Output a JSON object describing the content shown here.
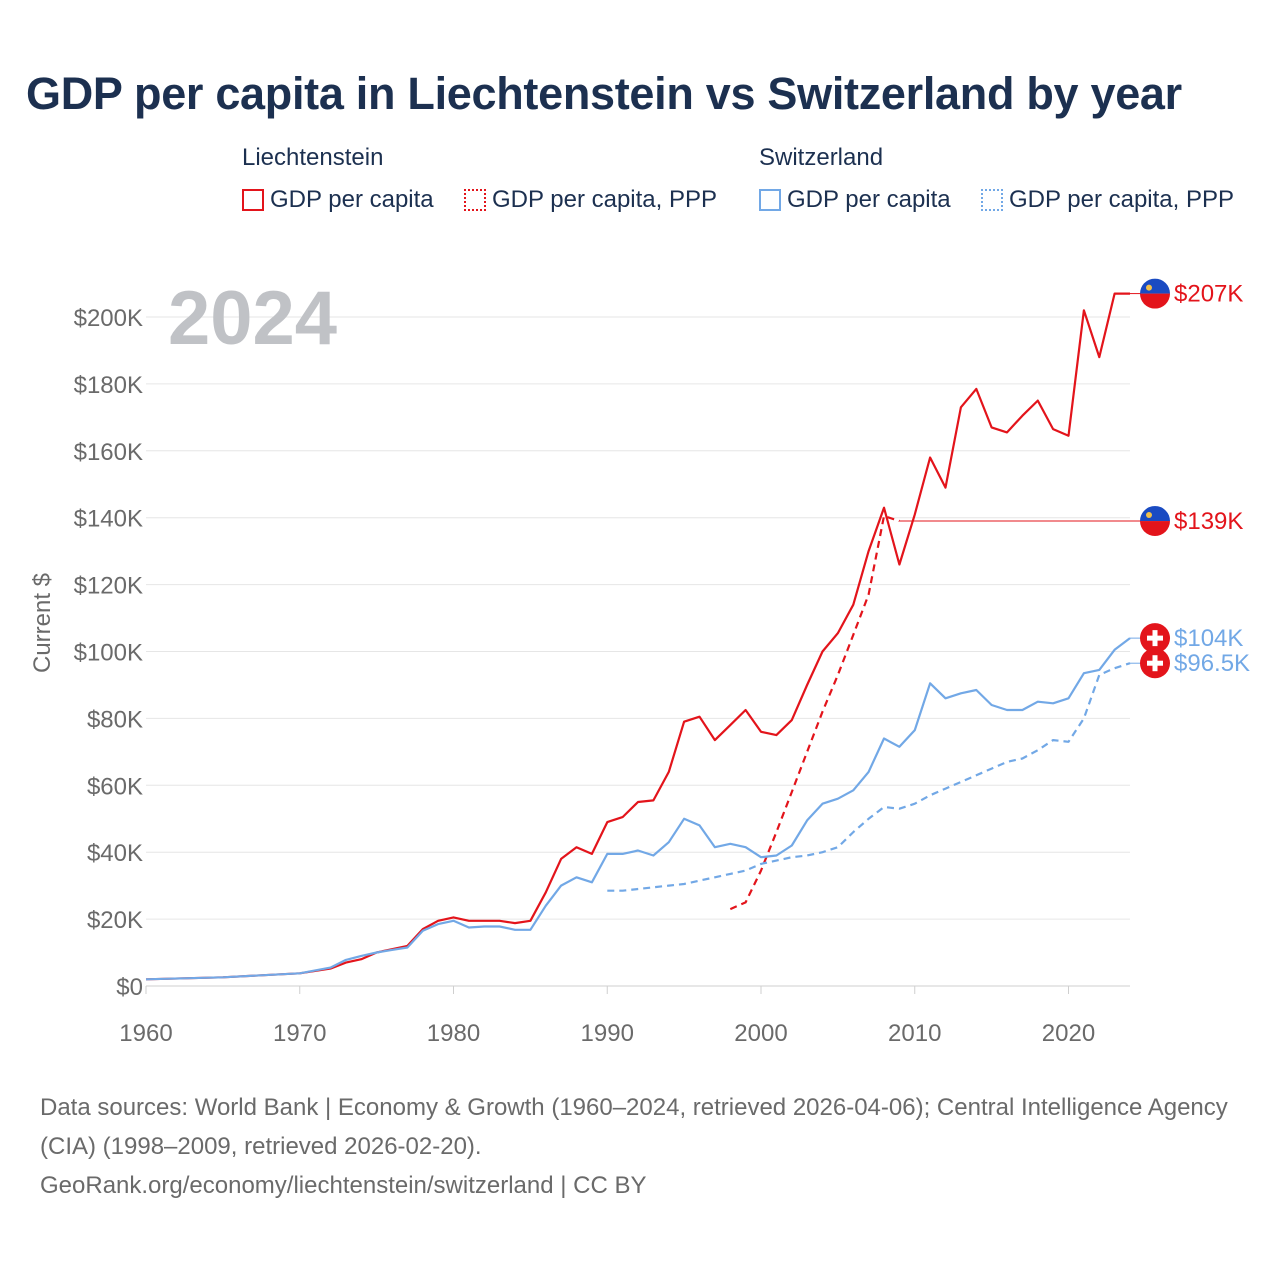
{
  "title": "GDP per capita in Liechtenstein vs Switzerland by year",
  "year_watermark": "2024",
  "legend": {
    "groups": [
      {
        "name": "Liechtenstein",
        "color": "#e3141b",
        "items": [
          "GDP per capita",
          "GDP per capita, PPP"
        ]
      },
      {
        "name": "Switzerland",
        "color": "#72a8e6",
        "items": [
          "GDP per capita",
          "GDP per capita, PPP"
        ]
      }
    ]
  },
  "chart_data": {
    "type": "line",
    "title": "GDP per capita in Liechtenstein vs Switzerland by year",
    "xlabel": "",
    "ylabel": "Current $",
    "xlim": [
      1960,
      2024
    ],
    "ylim": [
      0,
      207000
    ],
    "x_ticks": [
      1960,
      1970,
      1980,
      1990,
      2000,
      2010,
      2020
    ],
    "y_ticks": [
      0,
      20000,
      40000,
      60000,
      80000,
      100000,
      120000,
      140000,
      160000,
      180000,
      200000
    ],
    "y_tick_labels": [
      "$0",
      "$20K",
      "$40K",
      "$60K",
      "$80K",
      "$100K",
      "$120K",
      "$140K",
      "$160K",
      "$180K",
      "$200K"
    ],
    "series": [
      {
        "name": "Liechtenstein GDP per capita",
        "color": "#e3141b",
        "dashed": false,
        "end_label": "$207K",
        "points": [
          [
            1960,
            2000
          ],
          [
            1965,
            2600
          ],
          [
            1970,
            3800
          ],
          [
            1972,
            5200
          ],
          [
            1973,
            7000
          ],
          [
            1974,
            8000
          ],
          [
            1975,
            10000
          ],
          [
            1976,
            11000
          ],
          [
            1977,
            12000
          ],
          [
            1978,
            17000
          ],
          [
            1979,
            19500
          ],
          [
            1980,
            20500
          ],
          [
            1981,
            19500
          ],
          [
            1982,
            19500
          ],
          [
            1983,
            19500
          ],
          [
            1984,
            18800
          ],
          [
            1985,
            19500
          ],
          [
            1986,
            28000
          ],
          [
            1987,
            38000
          ],
          [
            1988,
            41500
          ],
          [
            1989,
            39500
          ],
          [
            1990,
            49000
          ],
          [
            1991,
            50500
          ],
          [
            1992,
            55000
          ],
          [
            1993,
            55500
          ],
          [
            1994,
            64000
          ],
          [
            1995,
            79000
          ],
          [
            1996,
            80500
          ],
          [
            1997,
            73500
          ],
          [
            1998,
            78000
          ],
          [
            1999,
            82500
          ],
          [
            2000,
            76000
          ],
          [
            2001,
            75000
          ],
          [
            2002,
            79500
          ],
          [
            2003,
            90000
          ],
          [
            2004,
            100000
          ],
          [
            2005,
            105500
          ],
          [
            2006,
            114000
          ],
          [
            2007,
            130000
          ],
          [
            2008,
            143000
          ],
          [
            2009,
            126000
          ],
          [
            2010,
            141000
          ],
          [
            2011,
            158000
          ],
          [
            2012,
            149000
          ],
          [
            2013,
            173000
          ],
          [
            2014,
            178500
          ],
          [
            2015,
            167000
          ],
          [
            2016,
            165500
          ],
          [
            2017,
            170500
          ],
          [
            2018,
            175000
          ],
          [
            2019,
            166500
          ],
          [
            2020,
            164500
          ],
          [
            2021,
            202000
          ],
          [
            2022,
            188000
          ],
          [
            2023,
            207000
          ],
          [
            2024,
            207000
          ]
        ]
      },
      {
        "name": "Liechtenstein GDP per capita, PPP",
        "color": "#e3141b",
        "dashed": true,
        "end_label": "$139K",
        "points": [
          [
            1998,
            23000
          ],
          [
            1999,
            25000
          ],
          [
            2000,
            34500
          ],
          [
            2001,
            46000
          ],
          [
            2002,
            58000
          ],
          [
            2003,
            70000
          ],
          [
            2004,
            82000
          ],
          [
            2005,
            93000
          ],
          [
            2006,
            105000
          ],
          [
            2007,
            117000
          ],
          [
            2008,
            140500
          ],
          [
            2009,
            139000
          ]
        ]
      },
      {
        "name": "Switzerland GDP per capita",
        "color": "#72a8e6",
        "dashed": false,
        "end_label": "$104K",
        "points": [
          [
            1960,
            2000
          ],
          [
            1965,
            2600
          ],
          [
            1970,
            3800
          ],
          [
            1972,
            5500
          ],
          [
            1973,
            7800
          ],
          [
            1974,
            9000
          ],
          [
            1975,
            10000
          ],
          [
            1976,
            10800
          ],
          [
            1977,
            11500
          ],
          [
            1978,
            16500
          ],
          [
            1979,
            18500
          ],
          [
            1980,
            19500
          ],
          [
            1981,
            17500
          ],
          [
            1982,
            17800
          ],
          [
            1983,
            17800
          ],
          [
            1984,
            16800
          ],
          [
            1985,
            16800
          ],
          [
            1986,
            24000
          ],
          [
            1987,
            30000
          ],
          [
            1988,
            32500
          ],
          [
            1989,
            31000
          ],
          [
            1990,
            39500
          ],
          [
            1991,
            39500
          ],
          [
            1992,
            40500
          ],
          [
            1993,
            39000
          ],
          [
            1994,
            43000
          ],
          [
            1995,
            50000
          ],
          [
            1996,
            48000
          ],
          [
            1997,
            41500
          ],
          [
            1998,
            42500
          ],
          [
            1999,
            41500
          ],
          [
            2000,
            38500
          ],
          [
            2001,
            39000
          ],
          [
            2002,
            42000
          ],
          [
            2003,
            49500
          ],
          [
            2004,
            54500
          ],
          [
            2005,
            56000
          ],
          [
            2006,
            58500
          ],
          [
            2007,
            64000
          ],
          [
            2008,
            74000
          ],
          [
            2009,
            71500
          ],
          [
            2010,
            76500
          ],
          [
            2011,
            90500
          ],
          [
            2012,
            86000
          ],
          [
            2013,
            87500
          ],
          [
            2014,
            88500
          ],
          [
            2015,
            84000
          ],
          [
            2016,
            82500
          ],
          [
            2017,
            82500
          ],
          [
            2018,
            85000
          ],
          [
            2019,
            84500
          ],
          [
            2020,
            86000
          ],
          [
            2021,
            93500
          ],
          [
            2022,
            94500
          ],
          [
            2023,
            100500
          ],
          [
            2024,
            104000
          ]
        ]
      },
      {
        "name": "Switzerland GDP per capita, PPP",
        "color": "#72a8e6",
        "dashed": true,
        "end_label": "$96.5K",
        "points": [
          [
            1990,
            28500
          ],
          [
            1991,
            28500
          ],
          [
            1992,
            29000
          ],
          [
            1993,
            29500
          ],
          [
            1994,
            30000
          ],
          [
            1995,
            30500
          ],
          [
            1996,
            31500
          ],
          [
            1997,
            32500
          ],
          [
            1998,
            33500
          ],
          [
            1999,
            34500
          ],
          [
            2000,
            36500
          ],
          [
            2001,
            37500
          ],
          [
            2002,
            38500
          ],
          [
            2003,
            39000
          ],
          [
            2004,
            40000
          ],
          [
            2005,
            41500
          ],
          [
            2006,
            46000
          ],
          [
            2007,
            50000
          ],
          [
            2008,
            53500
          ],
          [
            2009,
            53000
          ],
          [
            2010,
            54500
          ],
          [
            2011,
            57000
          ],
          [
            2012,
            59000
          ],
          [
            2013,
            61000
          ],
          [
            2014,
            63000
          ],
          [
            2015,
            65000
          ],
          [
            2016,
            67000
          ],
          [
            2017,
            68000
          ],
          [
            2018,
            70500
          ],
          [
            2019,
            73500
          ],
          [
            2020,
            73000
          ],
          [
            2021,
            80000
          ],
          [
            2022,
            93000
          ],
          [
            2023,
            95000
          ],
          [
            2024,
            96500
          ]
        ]
      }
    ]
  },
  "footer": {
    "sources": "Data sources: World Bank | Economy & Growth (1960–2024, retrieved 2026-04-06); Central Intelligence Agency (CIA) (1998–2009, retrieved 2026-02-20).",
    "site": "GeoRank.org/economy/liechtenstein/switzerland | CC BY"
  }
}
